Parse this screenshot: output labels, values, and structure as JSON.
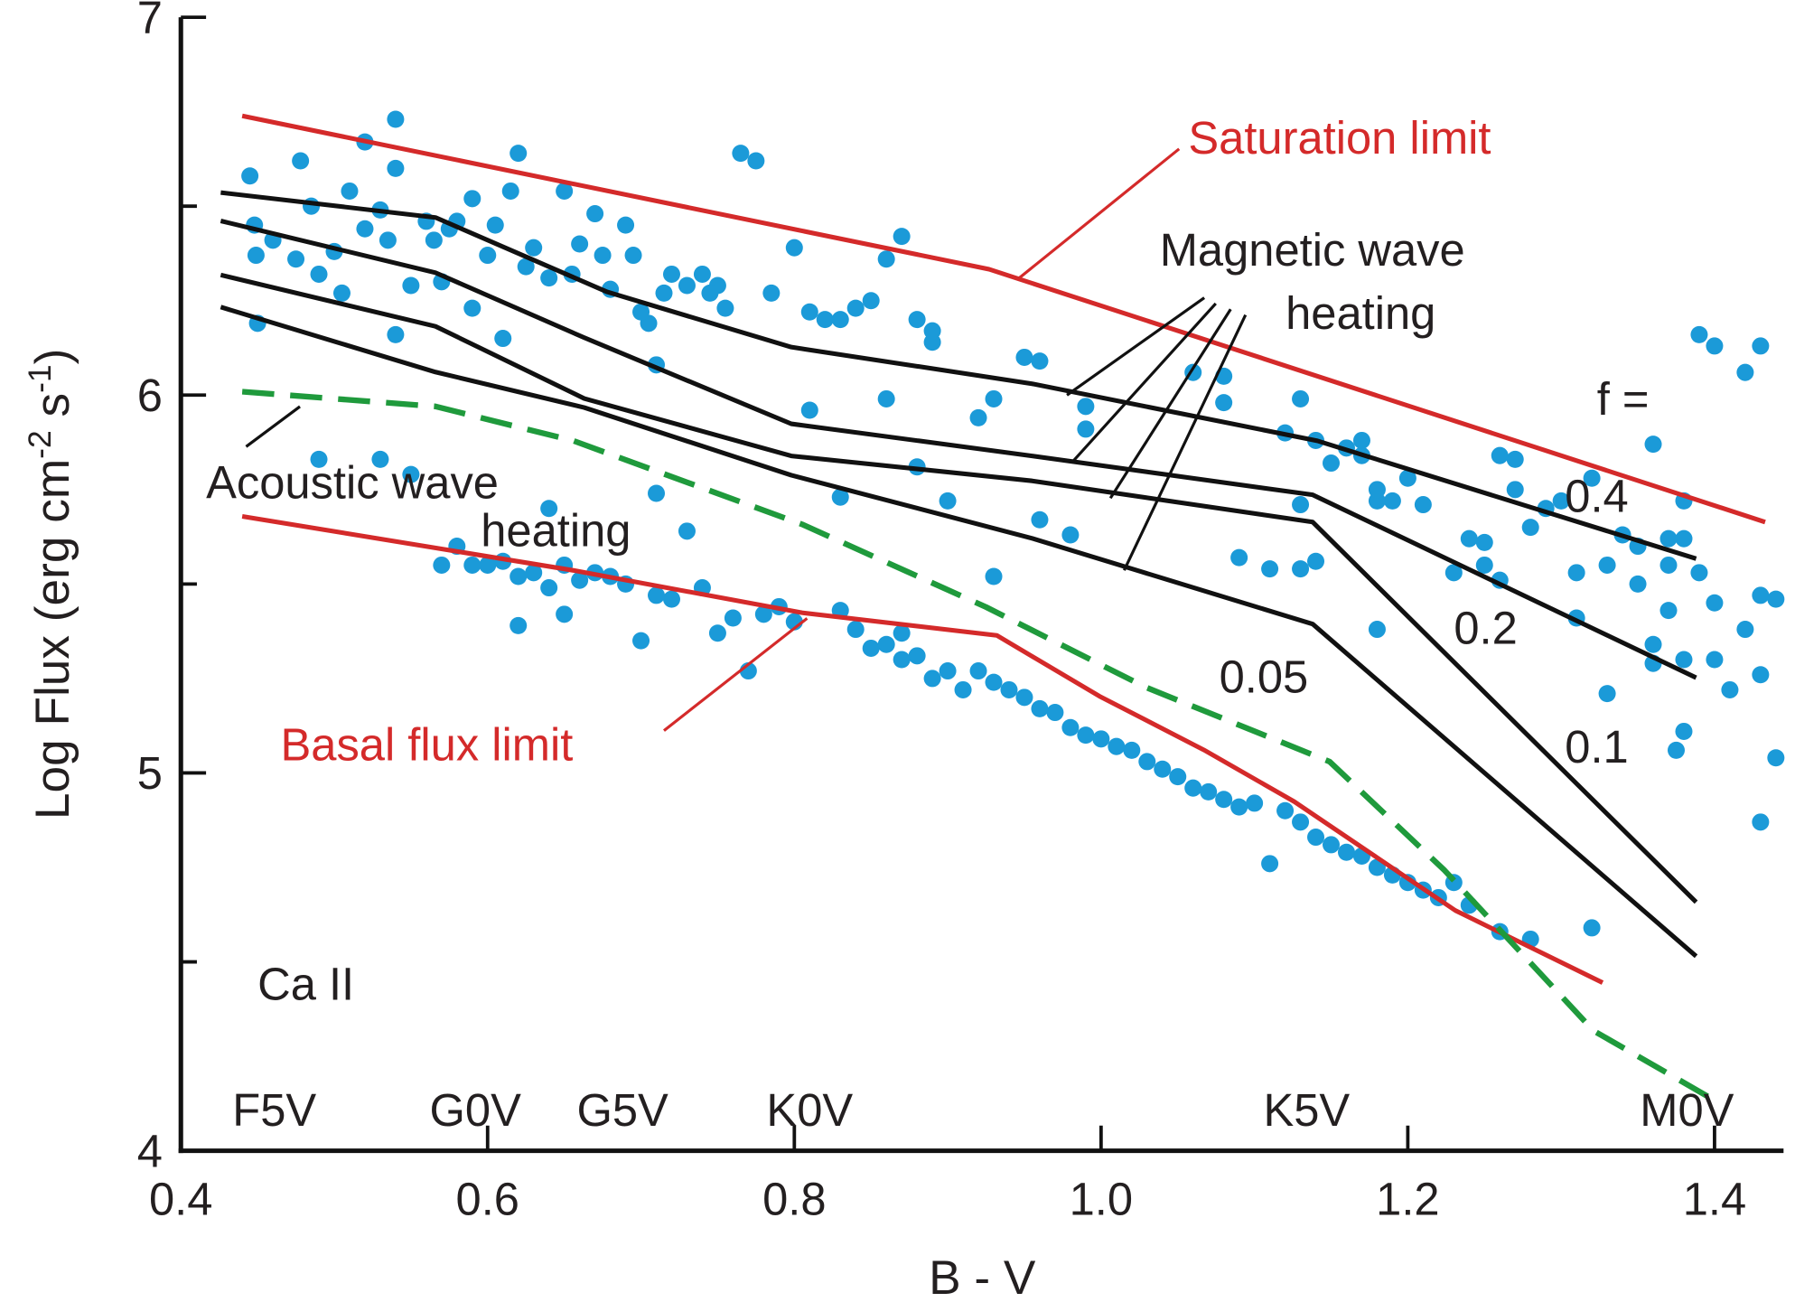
{
  "chart_data": {
    "type": "scatter",
    "xlabel": "B - V",
    "ylabel": [
      "Log Flux  (erg cm",
      "-2",
      " s",
      "-1",
      ")"
    ],
    "xlim": [
      0.4,
      1.445
    ],
    "ylim": [
      4,
      7
    ],
    "xticks": [
      0.4,
      0.6,
      0.8,
      {
        "value": 1,
        "label": "1.0"
      },
      1.2,
      1.4
    ],
    "yticks": [
      4,
      5,
      6,
      7
    ],
    "yminor": [
      4.5,
      5.5,
      6.5
    ],
    "spectral_types": {
      "labels": [
        "F5V",
        "G0V",
        "G5V",
        "K0V",
        "K5V",
        "M0V"
      ],
      "x": [
        0.461,
        0.592,
        0.688,
        0.81,
        1.134,
        1.382
      ]
    },
    "annotations": [
      "Magnetic wave",
      "heating",
      "Acoustic wave",
      "heating",
      "f =",
      "Ca II"
    ],
    "series": [
      {
        "type": "scatter",
        "color": "#1b9ad8",
        "x": [
          0.445,
          0.448,
          0.449,
          0.45,
          0.46,
          0.475,
          0.478,
          0.485,
          0.49,
          0.5,
          0.505,
          0.51,
          0.52,
          0.52,
          0.53,
          0.535,
          0.54,
          0.54,
          0.54,
          0.55,
          0.56,
          0.565,
          0.57,
          0.575,
          0.58,
          0.59,
          0.59,
          0.6,
          0.605,
          0.61,
          0.615,
          0.62,
          0.625,
          0.63,
          0.64,
          0.65,
          0.655,
          0.66,
          0.67,
          0.675,
          0.68,
          0.69,
          0.695,
          0.7,
          0.705,
          0.71,
          0.715,
          0.72,
          0.73,
          0.74,
          0.745,
          0.75,
          0.755,
          0.765,
          0.775,
          0.785,
          0.8,
          0.81,
          0.82,
          0.83,
          0.84,
          0.85,
          0.86,
          0.87,
          0.88,
          0.89,
          0.89,
          0.81,
          0.86,
          0.88,
          0.9,
          0.93,
          0.92,
          0.95,
          0.96,
          0.99,
          0.99,
          0.98,
          0.96,
          1.06,
          1.08,
          1.08,
          1.09,
          1.13,
          1.13,
          1.14,
          1.12,
          1.11,
          1.13,
          1.14,
          1.15,
          1.16,
          1.17,
          1.17,
          1.18,
          1.18,
          1.19,
          1.18,
          1.2,
          1.21,
          1.23,
          1.24,
          1.25,
          1.25,
          1.26,
          1.26,
          1.27,
          1.27,
          1.28,
          1.29,
          1.3,
          1.31,
          1.31,
          1.32,
          1.33,
          1.33,
          1.34,
          1.35,
          1.35,
          1.36,
          1.36,
          1.36,
          1.37,
          1.37,
          1.37,
          1.38,
          1.38,
          1.38,
          1.38,
          1.39,
          1.39,
          1.4,
          1.4,
          1.4,
          1.41,
          1.42,
          1.42,
          1.43,
          1.43,
          1.43,
          1.44,
          1.44,
          1.43,
          1.375,
          0.57,
          0.58,
          0.59,
          0.6,
          0.61,
          0.62,
          0.63,
          0.64,
          0.65,
          0.66,
          0.67,
          0.68,
          0.69,
          0.7,
          0.71,
          0.72,
          0.73,
          0.74,
          0.75,
          0.76,
          0.77,
          0.62,
          0.65,
          0.78,
          0.79,
          0.8,
          0.83,
          0.84,
          0.86,
          0.87,
          0.88,
          0.89,
          0.9,
          0.91,
          0.92,
          0.93,
          0.94,
          0.95,
          0.96,
          0.97,
          0.98,
          0.99,
          1.0,
          1.01,
          1.02,
          1.03,
          1.04,
          1.05,
          1.06,
          1.07,
          1.08,
          1.09,
          1.1,
          1.11,
          1.12,
          1.13,
          1.14,
          1.15,
          1.16,
          1.17,
          1.18,
          1.19,
          1.2,
          1.21,
          1.22,
          1.23,
          1.24,
          1.26,
          1.28,
          1.32,
          0.55,
          0.53,
          0.49,
          0.64,
          0.71,
          0.83,
          0.93,
          0.87,
          0.85
        ],
        "values": [
          6.58,
          6.45,
          6.37,
          6.19,
          6.41,
          6.36,
          6.62,
          6.5,
          6.32,
          6.38,
          6.27,
          6.54,
          6.44,
          6.67,
          6.49,
          6.41,
          6.73,
          6.6,
          6.16,
          6.29,
          6.46,
          6.41,
          6.3,
          6.44,
          6.46,
          6.23,
          6.52,
          6.37,
          6.45,
          6.15,
          6.54,
          6.64,
          6.34,
          6.39,
          6.31,
          6.54,
          6.32,
          6.4,
          6.48,
          6.37,
          6.28,
          6.45,
          6.37,
          6.22,
          6.19,
          6.08,
          6.27,
          6.32,
          6.29,
          6.32,
          6.27,
          6.29,
          6.23,
          6.64,
          6.62,
          6.27,
          6.39,
          6.22,
          6.2,
          6.2,
          6.23,
          6.25,
          6.36,
          6.42,
          6.2,
          6.17,
          6.14,
          5.96,
          5.99,
          5.81,
          5.72,
          5.99,
          5.94,
          6.1,
          6.09,
          5.97,
          5.91,
          5.63,
          5.67,
          6.06,
          6.05,
          5.98,
          5.57,
          5.99,
          5.71,
          5.88,
          5.9,
          5.54,
          5.54,
          5.56,
          5.82,
          5.86,
          5.88,
          5.84,
          5.75,
          5.72,
          5.72,
          5.38,
          5.78,
          5.71,
          5.53,
          5.62,
          5.61,
          5.55,
          5.51,
          5.84,
          5.83,
          5.75,
          5.65,
          5.7,
          5.72,
          5.53,
          5.41,
          5.78,
          5.55,
          5.21,
          5.63,
          5.6,
          5.5,
          5.34,
          5.29,
          5.87,
          5.62,
          5.55,
          5.43,
          5.72,
          5.62,
          5.3,
          5.11,
          5.53,
          6.16,
          6.13,
          5.45,
          5.3,
          5.22,
          5.38,
          6.06,
          5.47,
          5.26,
          6.13,
          5.46,
          5.04,
          4.87,
          5.06,
          5.55,
          5.6,
          5.55,
          5.55,
          5.56,
          5.52,
          5.53,
          5.49,
          5.55,
          5.51,
          5.53,
          5.52,
          5.5,
          5.35,
          5.47,
          5.46,
          5.64,
          5.49,
          5.37,
          5.41,
          5.27,
          5.39,
          5.42,
          5.42,
          5.44,
          5.4,
          5.43,
          5.38,
          5.34,
          5.3,
          5.31,
          5.25,
          5.27,
          5.22,
          5.27,
          5.24,
          5.22,
          5.2,
          5.17,
          5.16,
          5.12,
          5.1,
          5.09,
          5.07,
          5.06,
          5.03,
          5.01,
          4.99,
          4.96,
          4.95,
          4.93,
          4.91,
          4.92,
          4.76,
          4.9,
          4.87,
          4.83,
          4.81,
          4.79,
          4.78,
          4.75,
          4.73,
          4.71,
          4.69,
          4.67,
          4.71,
          4.65,
          4.58,
          4.56,
          4.59,
          5.79,
          5.83,
          5.83,
          5.7,
          5.74,
          5.73,
          5.52,
          5.37,
          5.33
        ]
      },
      {
        "type": "line",
        "color": "#d42a2a",
        "label": "Saturation limit",
        "x": [
          0.44,
          0.927,
          1.433
        ],
        "values": [
          6.739,
          6.333,
          5.664
        ]
      },
      {
        "type": "line",
        "color": "#d42a2a",
        "label": "Basal flux limit",
        "x": [
          0.44,
          0.656,
          0.805,
          0.932,
          0.999,
          1.067,
          1.126,
          1.231,
          1.327
        ],
        "values": [
          5.679,
          5.536,
          5.424,
          5.364,
          5.203,
          5.061,
          4.924,
          4.636,
          4.445
        ]
      },
      {
        "type": "line",
        "color": "#1f9a3c",
        "dashed": true,
        "x": [
          0.44,
          0.566,
          0.656,
          0.805,
          0.925,
          1.029,
          1.149,
          1.224,
          1.321,
          1.399
        ],
        "values": [
          6.009,
          5.97,
          5.879,
          5.658,
          5.439,
          5.227,
          5.03,
          4.742,
          4.318,
          4.136
        ]
      },
      {
        "type": "line",
        "color": "#111111",
        "label": "0.4",
        "x": [
          0.426,
          0.566,
          0.678,
          0.798,
          0.955,
          1.141,
          1.388
        ],
        "values": [
          6.536,
          6.47,
          6.273,
          6.127,
          6.03,
          5.879,
          5.567
        ]
      },
      {
        "type": "line",
        "color": "#111111",
        "label": "0.2",
        "x": [
          0.426,
          0.566,
          0.663,
          0.798,
          0.955,
          1.138,
          1.388
        ],
        "values": [
          6.461,
          6.324,
          6.152,
          5.924,
          5.839,
          5.736,
          5.252
        ]
      },
      {
        "type": "line",
        "color": "#111111",
        "label": "0.1",
        "x": [
          0.426,
          0.566,
          0.663,
          0.798,
          0.955,
          1.138,
          1.388
        ],
        "values": [
          6.318,
          6.182,
          5.991,
          5.839,
          5.773,
          5.664,
          4.658
        ]
      },
      {
        "type": "line",
        "color": "#111111",
        "label": "0.05",
        "x": [
          0.426,
          0.566,
          0.663,
          0.798,
          0.955,
          1.138,
          1.388
        ],
        "values": [
          6.233,
          6.061,
          5.967,
          5.788,
          5.621,
          5.394,
          4.515
        ]
      }
    ]
  }
}
